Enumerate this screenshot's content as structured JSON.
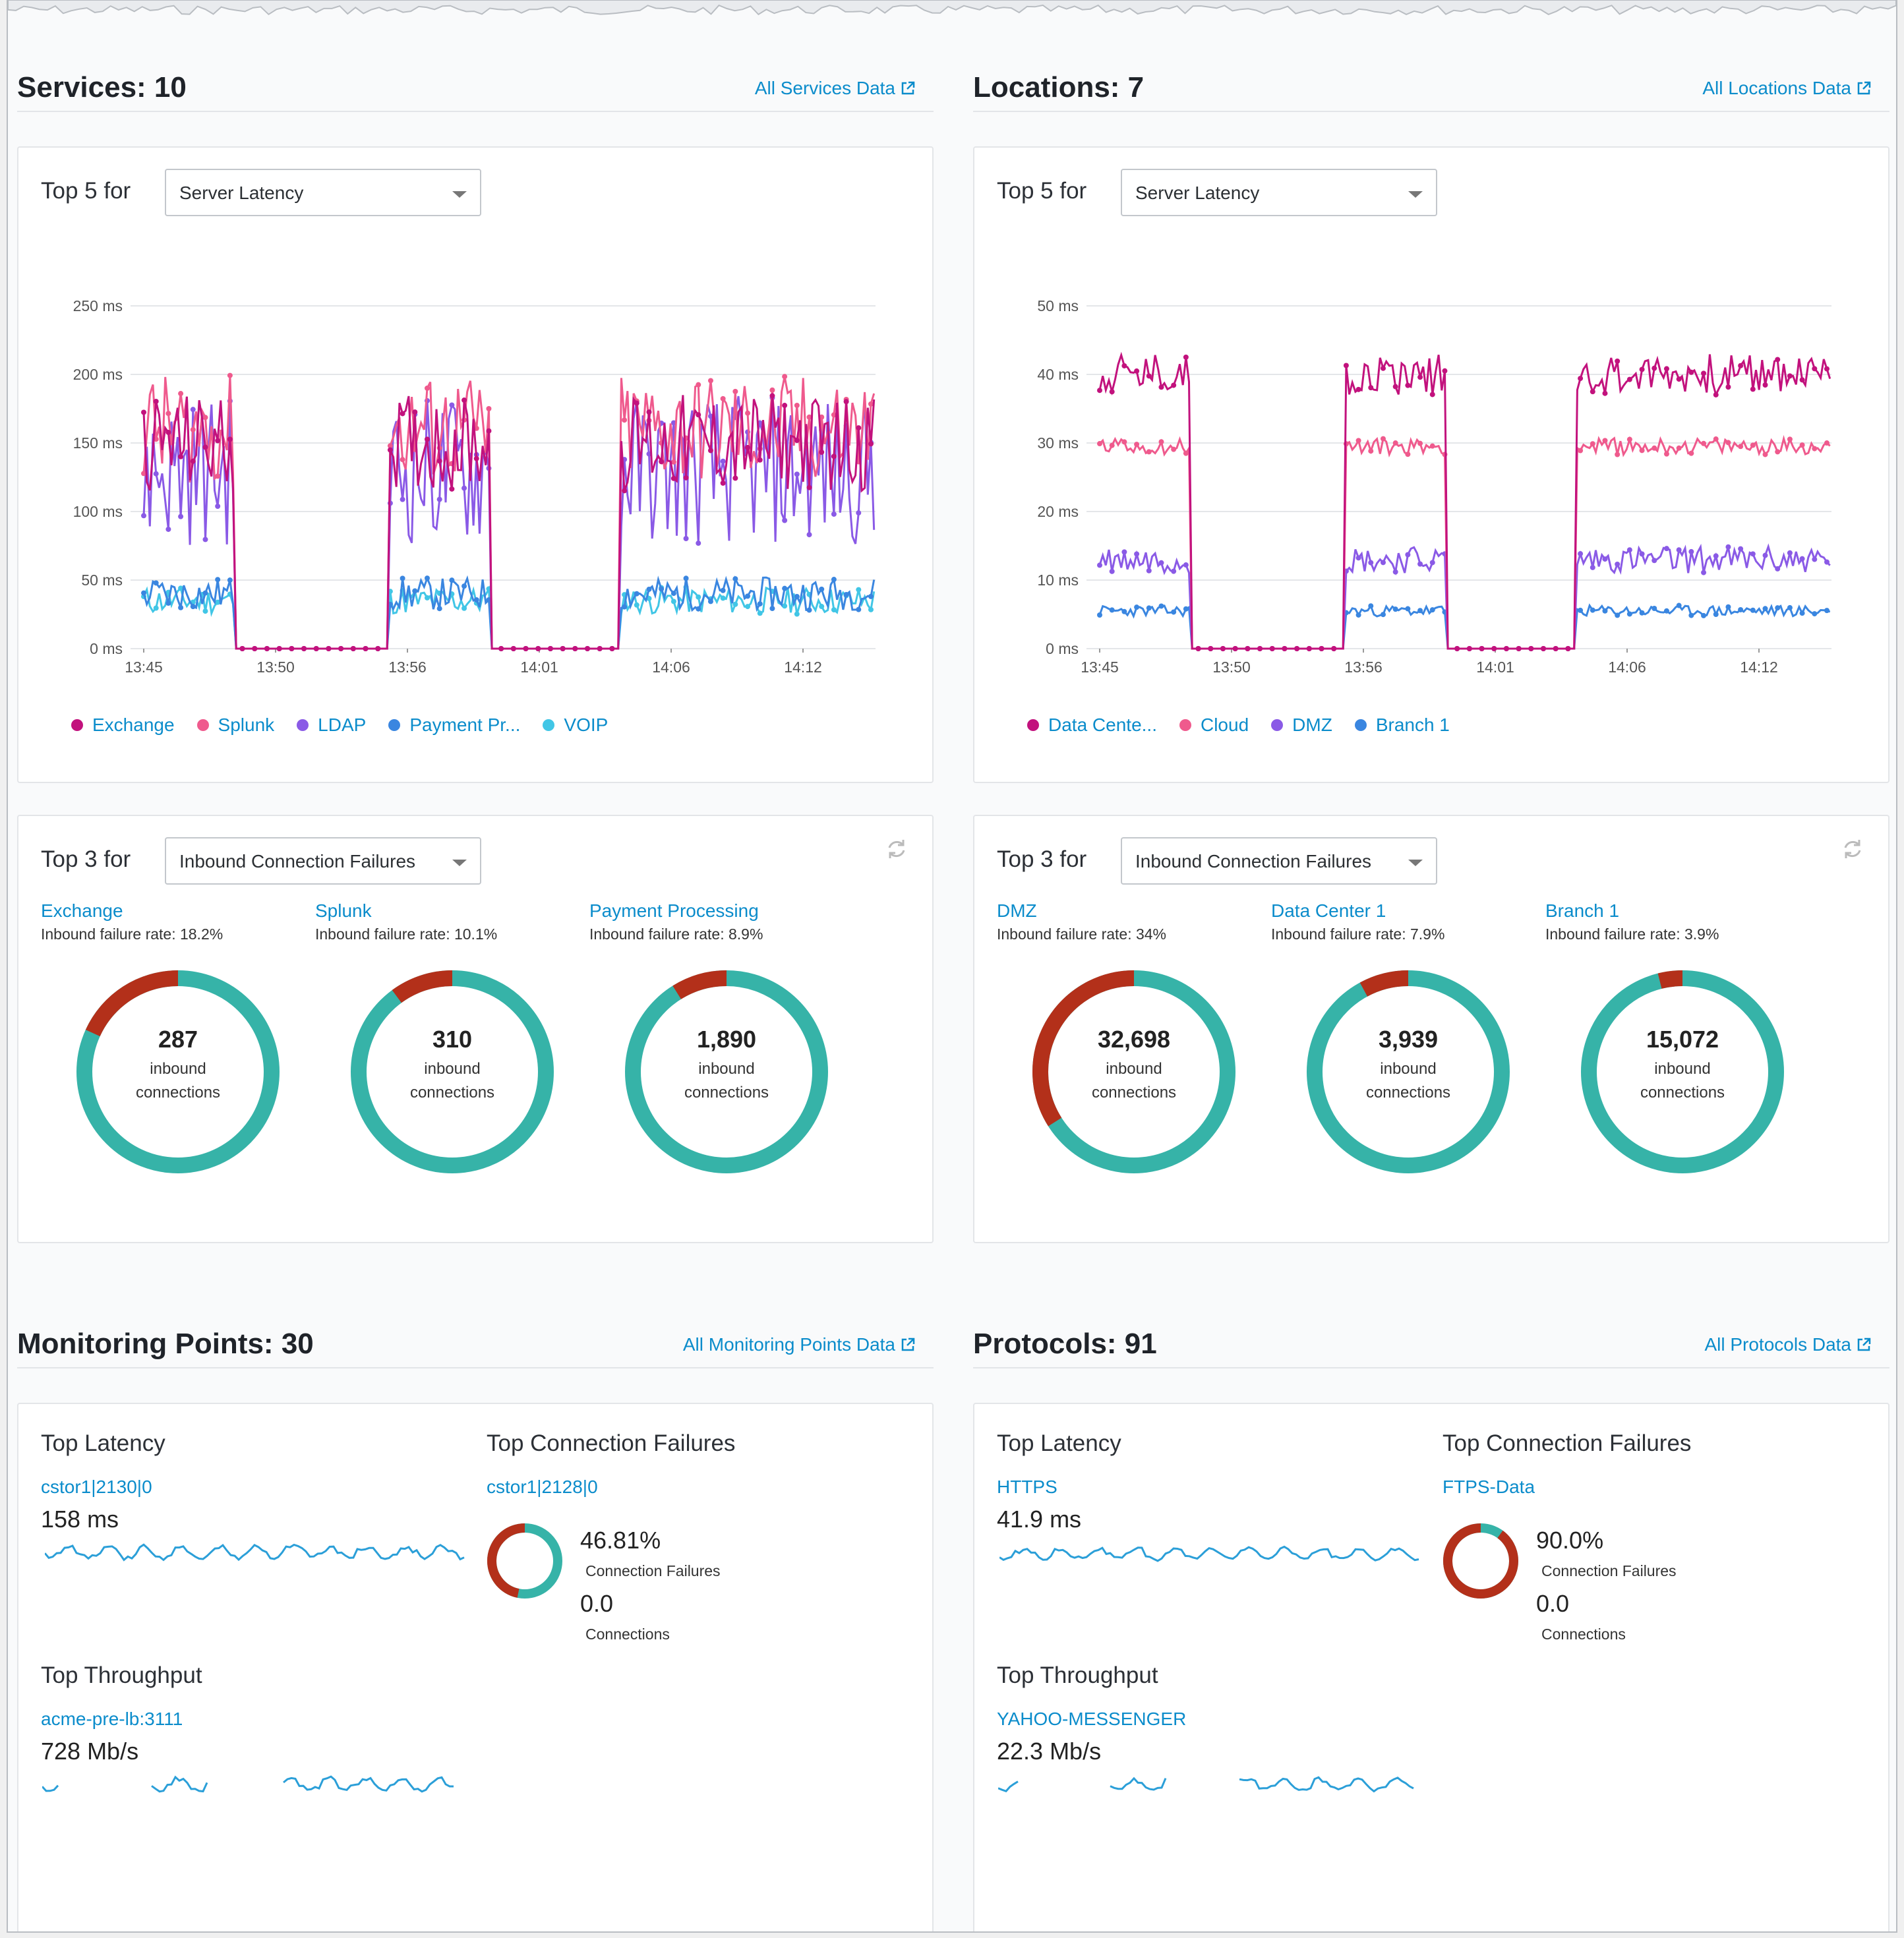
{
  "services": {
    "title": "Services: 10",
    "link": "All Services Data",
    "top5": {
      "label": "Top 5 for",
      "metric": "Server Latency",
      "legend": [
        {
          "name": "Exchange",
          "color": "#c2127d"
        },
        {
          "name": "Splunk",
          "color": "#ef5a8d"
        },
        {
          "name": "LDAP",
          "color": "#8a5ae6"
        },
        {
          "name": "Payment Pr...",
          "color": "#3a86e0"
        },
        {
          "name": "VOIP",
          "color": "#41c6e6"
        }
      ]
    },
    "top3": {
      "label": "Top 3 for",
      "metric": "Inbound Connection Failures",
      "items": [
        {
          "name": "Exchange",
          "rate": "Inbound failure rate: 18.2%",
          "failure_fraction": 0.182,
          "count": "287",
          "line1": "inbound",
          "line2": "connections"
        },
        {
          "name": "Splunk",
          "rate": "Inbound failure rate: 10.1%",
          "failure_fraction": 0.101,
          "count": "310",
          "line1": "inbound",
          "line2": "connections"
        },
        {
          "name": "Payment Processing",
          "rate": "Inbound failure rate: 8.9%",
          "failure_fraction": 0.089,
          "count": "1,890",
          "line1": "inbound",
          "line2": "connections"
        }
      ]
    }
  },
  "locations": {
    "title": "Locations: 7",
    "link": "All Locations Data",
    "top5": {
      "label": "Top 5 for",
      "metric": "Server Latency",
      "legend": [
        {
          "name": "Data Cente...",
          "color": "#c2127d"
        },
        {
          "name": "Cloud",
          "color": "#ef5a8d"
        },
        {
          "name": "DMZ",
          "color": "#8a5ae6"
        },
        {
          "name": "Branch 1",
          "color": "#3a86e0"
        }
      ]
    },
    "top3": {
      "label": "Top 3 for",
      "metric": "Inbound Connection Failures",
      "items": [
        {
          "name": "DMZ",
          "rate": "Inbound failure rate: 34%",
          "failure_fraction": 0.34,
          "count": "32,698",
          "line1": "inbound",
          "line2": "connections"
        },
        {
          "name": "Data Center 1",
          "rate": "Inbound failure rate: 7.9%",
          "failure_fraction": 0.079,
          "count": "3,939",
          "line1": "inbound",
          "line2": "connections"
        },
        {
          "name": "Branch 1",
          "rate": "Inbound failure rate: 3.9%",
          "failure_fraction": 0.039,
          "count": "15,072",
          "line1": "inbound",
          "line2": "connections"
        }
      ]
    }
  },
  "monitoring": {
    "title": "Monitoring Points: 30",
    "link": "All Monitoring Points Data",
    "latency": {
      "heading": "Top Latency",
      "name": "cstor1|2130|0",
      "value": "158 ms"
    },
    "failures": {
      "heading": "Top Connection Failures",
      "name": "cstor1|2128|0",
      "pct": "46.81%",
      "pct_fraction": 0.4681,
      "pct_label": "Connection Failures",
      "conn": "0.0",
      "conn_label": "Connections"
    },
    "throughput": {
      "heading": "Top Throughput",
      "name": "acme-pre-lb:3111",
      "value": "728 Mb/s"
    }
  },
  "protocols": {
    "title": "Protocols: 91",
    "link": "All Protocols Data",
    "latency": {
      "heading": "Top Latency",
      "name": "HTTPS",
      "value": "41.9 ms"
    },
    "failures": {
      "heading": "Top Connection Failures",
      "name": "FTPS-Data",
      "pct": "90.0%",
      "pct_fraction": 0.9,
      "pct_label": "Connection Failures",
      "conn": "0.0",
      "conn_label": "Connections"
    },
    "throughput": {
      "heading": "Top Throughput",
      "name": "YAHOO-MESSENGER",
      "value": "22.3 Mb/s"
    }
  },
  "colors": {
    "ok": "#36b3a8",
    "fail": "#b3301a",
    "link": "#0b8ccb",
    "spark": "#2b9fd8"
  },
  "chart_data": [
    {
      "type": "line",
      "x_ticks": [
        "13:45",
        "13:50",
        "13:56",
        "14:01",
        "14:06",
        "14:12"
      ],
      "y_ticks": [
        "0 ms",
        "50 ms",
        "100 ms",
        "150 ms",
        "200 ms",
        "250 ms"
      ],
      "ylim": [
        0,
        250
      ],
      "active_windows_min": [
        [
          0,
          3.5
        ],
        [
          9.5,
          13.5
        ],
        [
          18.5,
          28.5
        ]
      ],
      "x_range_min": [
        0,
        28.5
      ],
      "series": [
        {
          "name": "Exchange",
          "level": 150,
          "amp": 35
        },
        {
          "name": "Splunk",
          "level": 160,
          "amp": 40
        },
        {
          "name": "LDAP",
          "level": 130,
          "amp": 55
        },
        {
          "name": "Payment Pr...",
          "level": 40,
          "amp": 12
        },
        {
          "name": "VOIP",
          "level": 35,
          "amp": 10
        }
      ]
    },
    {
      "type": "line",
      "x_ticks": [
        "13:45",
        "13:50",
        "13:56",
        "14:01",
        "14:06",
        "14:12"
      ],
      "y_ticks": [
        "0 ms",
        "10 ms",
        "20 ms",
        "30 ms",
        "40 ms",
        "50 ms"
      ],
      "ylim": [
        0,
        50
      ],
      "active_windows_min": [
        [
          0,
          3.5
        ],
        [
          9.5,
          13.5
        ],
        [
          18.5,
          28.5
        ]
      ],
      "x_range_min": [
        0,
        28.5
      ],
      "series": [
        {
          "name": "Data Cente...",
          "level": 40,
          "amp": 3
        },
        {
          "name": "Cloud",
          "level": 29.5,
          "amp": 1.2
        },
        {
          "name": "DMZ",
          "level": 13,
          "amp": 2
        },
        {
          "name": "Branch 1",
          "level": 5.5,
          "amp": 0.8
        }
      ]
    }
  ]
}
